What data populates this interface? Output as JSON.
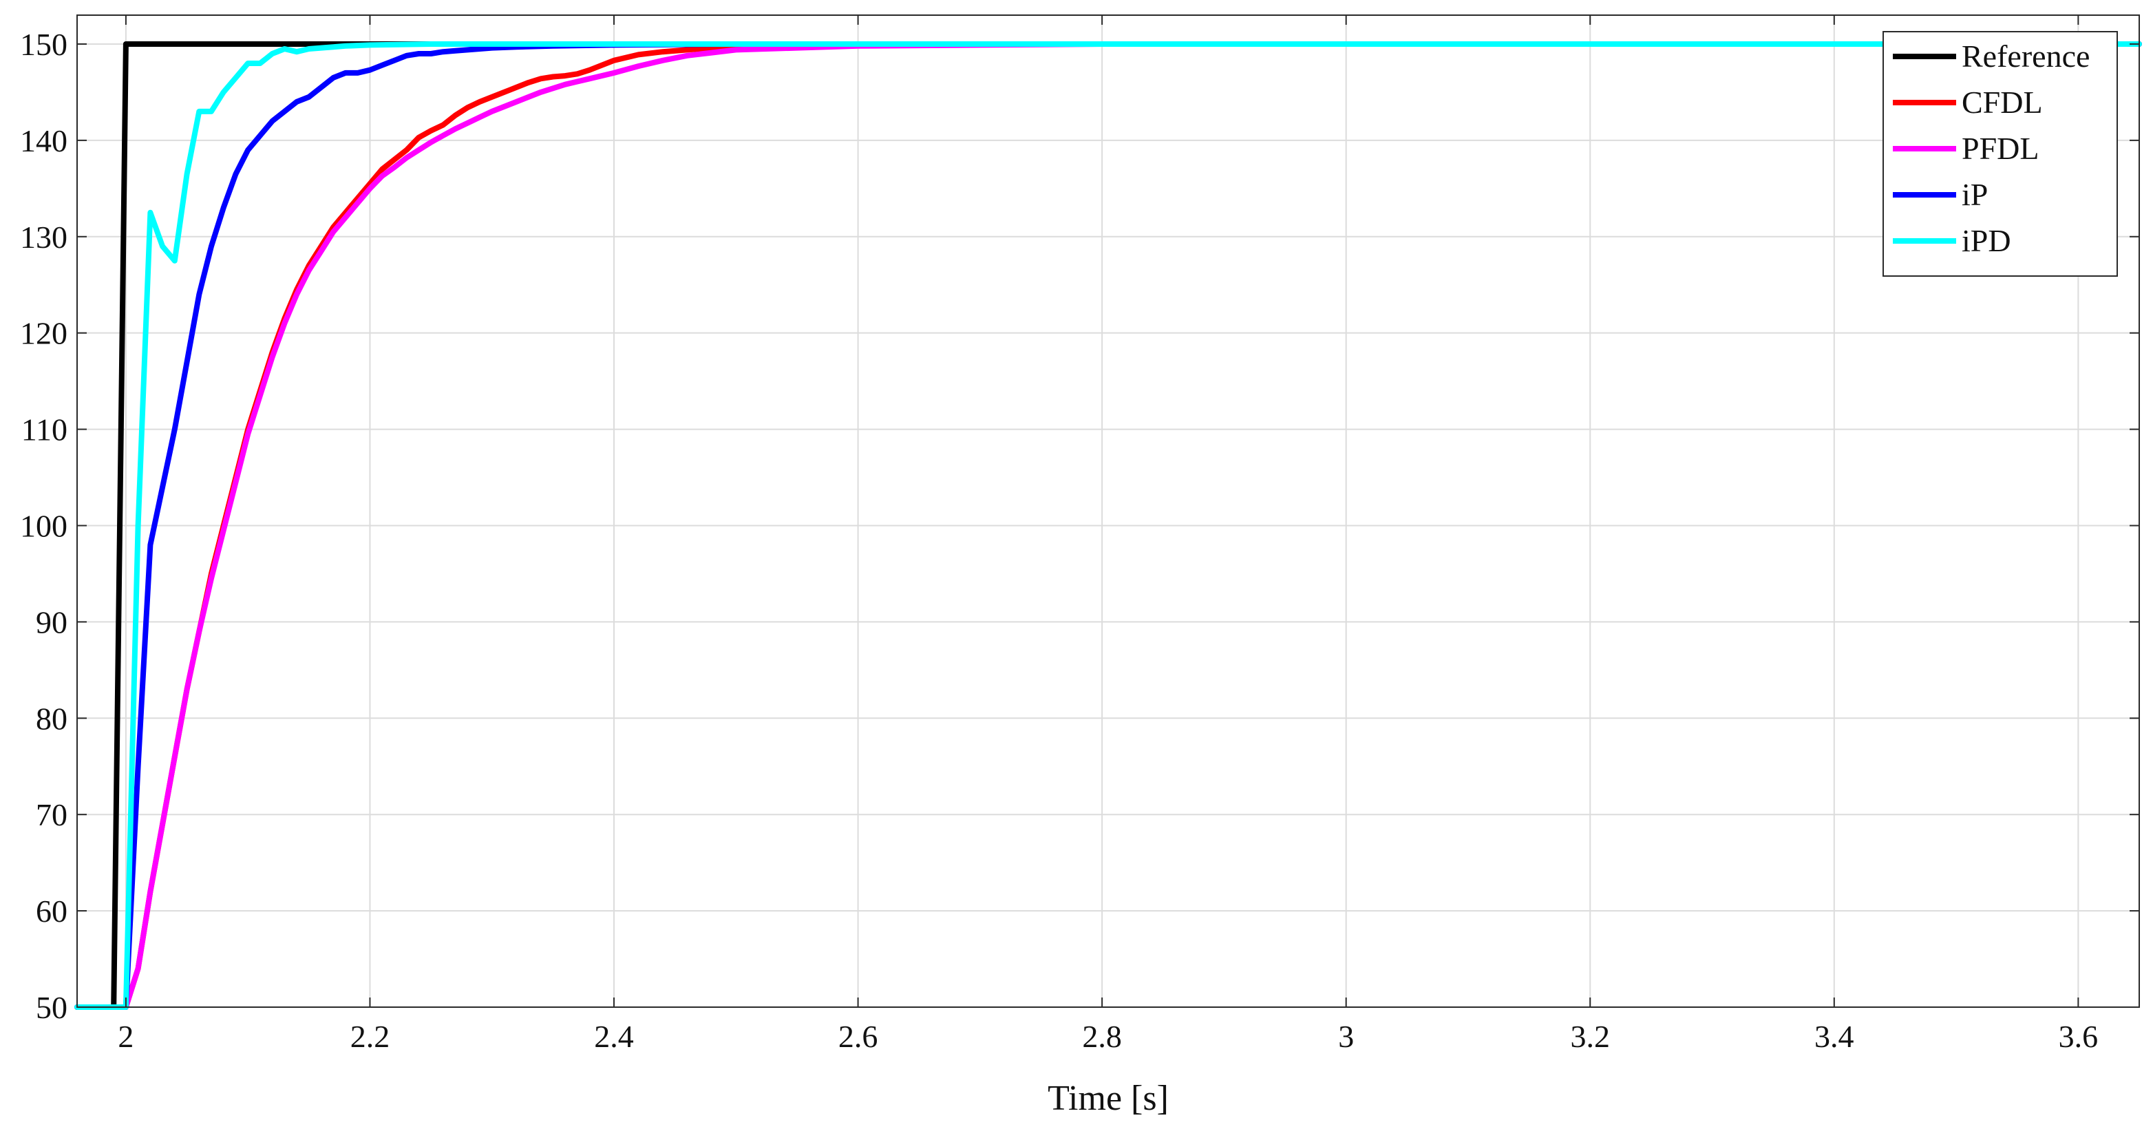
{
  "chart_data": {
    "type": "line",
    "title": "",
    "xlabel": "Time [s]",
    "ylabel": "",
    "xlim": [
      1.96,
      3.65
    ],
    "ylim": [
      50,
      153
    ],
    "grid": true,
    "legend_position": "top-right",
    "x_ticks": [
      2,
      2.2,
      2.4,
      2.6,
      2.8,
      3,
      3.2,
      3.4,
      3.6
    ],
    "x_tick_labels": [
      "2",
      "2.2",
      "2.4",
      "2.6",
      "2.8",
      "3",
      "3.2",
      "3.4",
      "3.6"
    ],
    "y_ticks": [
      50,
      60,
      70,
      80,
      90,
      100,
      110,
      120,
      130,
      140,
      150
    ],
    "y_tick_labels": [
      "50",
      "60",
      "70",
      "80",
      "90",
      "100",
      "110",
      "120",
      "130",
      "140",
      "150"
    ],
    "series": [
      {
        "name": "Reference",
        "color": "#000000",
        "x": [
          1.96,
          1.99,
          2.0,
          3.65
        ],
        "y": [
          50,
          50,
          150,
          150
        ]
      },
      {
        "name": "CFDL",
        "color": "#ff0000",
        "x": [
          1.96,
          2.0,
          2.01,
          2.02,
          2.03,
          2.04,
          2.05,
          2.06,
          2.07,
          2.08,
          2.09,
          2.1,
          2.11,
          2.12,
          2.13,
          2.14,
          2.15,
          2.16,
          2.17,
          2.18,
          2.19,
          2.2,
          2.21,
          2.22,
          2.23,
          2.24,
          2.25,
          2.26,
          2.27,
          2.28,
          2.29,
          2.3,
          2.31,
          2.32,
          2.33,
          2.34,
          2.35,
          2.36,
          2.37,
          2.38,
          2.4,
          2.42,
          2.44,
          2.46,
          2.48,
          2.5,
          2.55,
          2.6,
          2.7,
          2.8,
          3.0,
          3.65
        ],
        "y": [
          50,
          50,
          54,
          62,
          69,
          76,
          83,
          89,
          95,
          100,
          105,
          110,
          114,
          118,
          121.5,
          124.5,
          127,
          129,
          131,
          132.5,
          134,
          135.5,
          137,
          138,
          139,
          140.3,
          141,
          141.6,
          142.6,
          143.4,
          144,
          144.5,
          145,
          145.5,
          146,
          146.4,
          146.6,
          146.7,
          146.9,
          147.3,
          148.3,
          148.9,
          149.2,
          149.4,
          149.6,
          149.7,
          149.8,
          149.9,
          150,
          150,
          150,
          150
        ]
      },
      {
        "name": "PFDL",
        "color": "#ff00ff",
        "x": [
          1.96,
          2.0,
          2.01,
          2.02,
          2.03,
          2.04,
          2.05,
          2.06,
          2.07,
          2.08,
          2.09,
          2.1,
          2.11,
          2.12,
          2.13,
          2.14,
          2.15,
          2.16,
          2.17,
          2.18,
          2.19,
          2.2,
          2.21,
          2.22,
          2.23,
          2.24,
          2.25,
          2.26,
          2.27,
          2.28,
          2.29,
          2.3,
          2.31,
          2.32,
          2.33,
          2.34,
          2.35,
          2.36,
          2.37,
          2.38,
          2.4,
          2.42,
          2.44,
          2.46,
          2.48,
          2.5,
          2.55,
          2.6,
          2.7,
          2.8,
          3.0,
          3.65
        ],
        "y": [
          50,
          50,
          54,
          62,
          69,
          76,
          83,
          89,
          94.5,
          99.5,
          104.5,
          109.5,
          113.5,
          117.5,
          121,
          124,
          126.5,
          128.5,
          130.5,
          132,
          133.5,
          135,
          136.3,
          137.2,
          138.2,
          139,
          139.8,
          140.5,
          141.2,
          141.8,
          142.4,
          143,
          143.5,
          144,
          144.5,
          145,
          145.4,
          145.8,
          146.1,
          146.4,
          147,
          147.7,
          148.3,
          148.8,
          149.1,
          149.4,
          149.6,
          149.8,
          149.9,
          150,
          150,
          150
        ]
      },
      {
        "name": "iP",
        "color": "#0000ff",
        "x": [
          1.96,
          2.0,
          2.01,
          2.02,
          2.03,
          2.04,
          2.05,
          2.06,
          2.07,
          2.08,
          2.09,
          2.1,
          2.11,
          2.12,
          2.13,
          2.14,
          2.15,
          2.16,
          2.17,
          2.18,
          2.19,
          2.2,
          2.21,
          2.22,
          2.23,
          2.24,
          2.25,
          2.26,
          2.27,
          2.28,
          2.3,
          2.32,
          2.35,
          2.4,
          2.5,
          3.65
        ],
        "y": [
          50,
          50,
          75,
          98,
          104,
          110,
          117,
          124,
          129,
          133,
          136.5,
          139,
          140.5,
          142,
          143,
          144,
          144.5,
          145.5,
          146.5,
          147,
          147,
          147.3,
          147.8,
          148.3,
          148.8,
          149,
          149,
          149.2,
          149.3,
          149.4,
          149.6,
          149.7,
          149.8,
          149.9,
          150,
          150
        ]
      },
      {
        "name": "iPD",
        "color": "#00ffff",
        "x": [
          1.96,
          2.0,
          2.01,
          2.02,
          2.03,
          2.04,
          2.05,
          2.06,
          2.07,
          2.08,
          2.09,
          2.1,
          2.11,
          2.12,
          2.13,
          2.14,
          2.15,
          2.16,
          2.17,
          2.18,
          2.2,
          2.25,
          2.3,
          2.5,
          3.65
        ],
        "y": [
          50,
          50,
          100,
          132.5,
          129,
          127.5,
          136.5,
          143,
          143,
          145,
          146.5,
          148,
          148,
          149,
          149.5,
          149.2,
          149.5,
          149.6,
          149.7,
          149.8,
          149.9,
          150,
          150,
          150,
          150
        ]
      }
    ]
  }
}
